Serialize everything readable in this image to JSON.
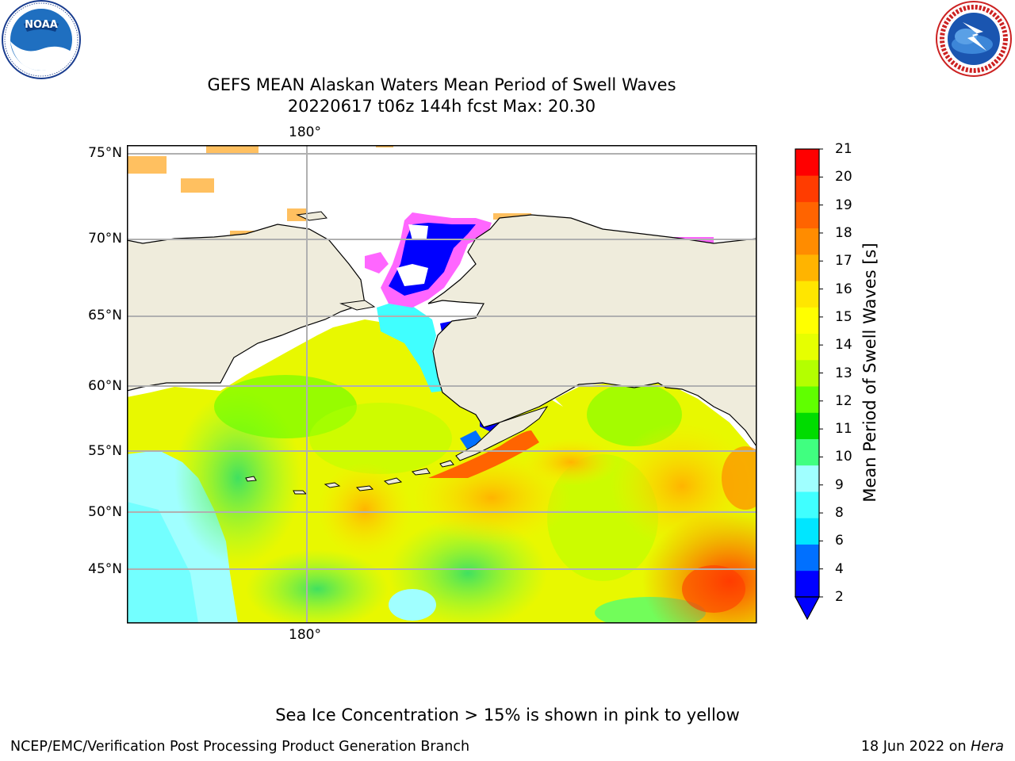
{
  "title": {
    "line1": "GEFS MEAN Alaskan Waters Mean Period of Swell Waves",
    "line2": "20220617 t06z 144h fcst   Max: 20.30"
  },
  "map": {
    "lon_label_top": "180°",
    "lon_label_bottom": "180°",
    "lat_labels": [
      "75°N",
      "70°N",
      "65°N",
      "60°N",
      "55°N",
      "50°N",
      "45°N"
    ],
    "land_color": "#efecdc",
    "coast_color": "#000000",
    "grid_color": "#b0b0b0"
  },
  "colorbar": {
    "label": "Mean Period of Swell Waves [s]",
    "ticks": [
      "21",
      "20",
      "19",
      "18",
      "17",
      "16",
      "15",
      "14",
      "13",
      "12",
      "11",
      "10",
      "9",
      "8",
      "6",
      "4",
      "2"
    ],
    "colors": [
      "#0000ff",
      "#0070ff",
      "#00e6ff",
      "#40ffff",
      "#a0ffff",
      "#40ff80",
      "#00dc00",
      "#60ff00",
      "#b4ff00",
      "#e6ff00",
      "#ffff00",
      "#ffe600",
      "#ffb400",
      "#ff8c00",
      "#ff6400",
      "#ff3c00",
      "#ff0000"
    ],
    "extend_color": "#0000ff"
  },
  "note": "Sea Ice Concentration > 15% is shown in pink to yellow",
  "footer": {
    "left": "NCEP/EMC/Verification Post Processing Product Generation Branch",
    "right_date": "18 Jun 2022 on",
    "right_machine": "Hera"
  },
  "logos": {
    "noaa": "NOAA",
    "nws_ring": "NATIONAL WEATHER SERVICE"
  }
}
